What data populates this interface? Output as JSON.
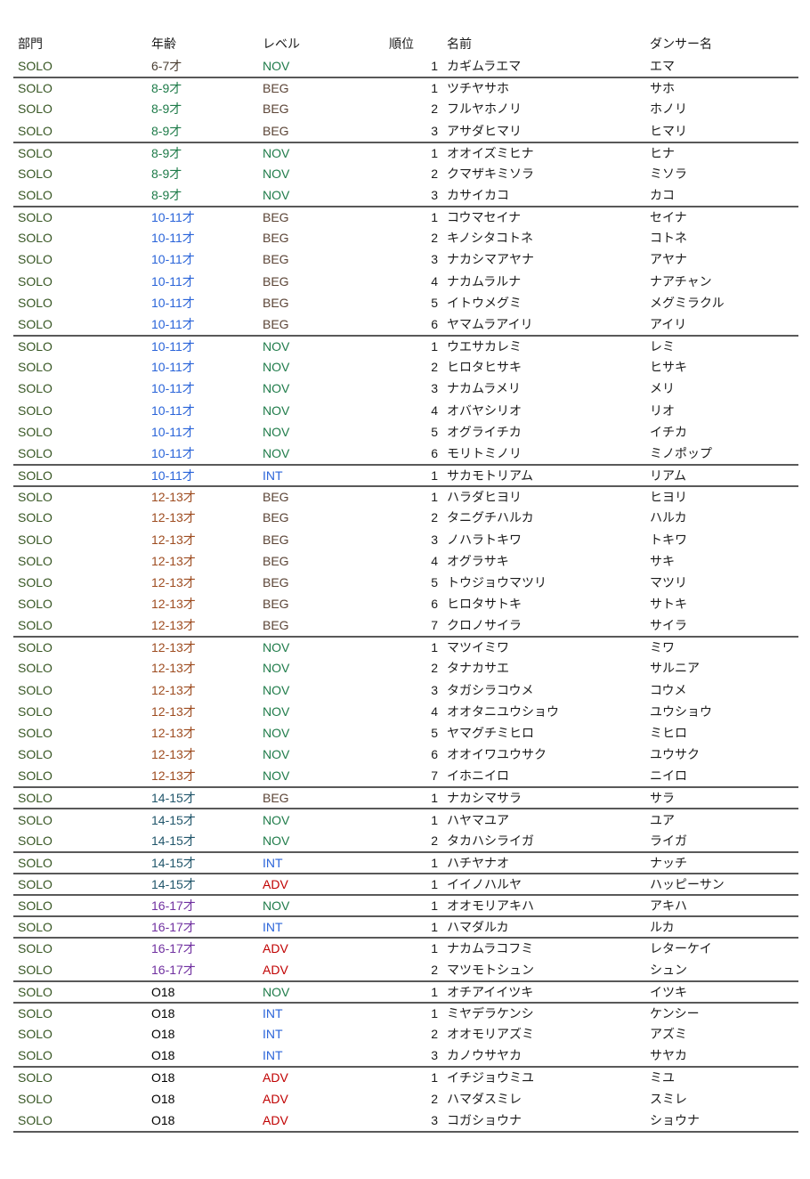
{
  "table": {
    "headers": [
      "部門",
      "年齢",
      "レベル",
      "順位",
      "名前",
      "ダンサー名"
    ],
    "rows": [
      [
        "SOLO",
        "6-7才",
        "NOV",
        "1",
        "カギムラエマ",
        "エマ"
      ],
      [
        "SOLO",
        "8-9才",
        "BEG",
        "1",
        "ツチヤサホ",
        "サホ"
      ],
      [
        "SOLO",
        "8-9才",
        "BEG",
        "2",
        "フルヤホノリ",
        "ホノリ"
      ],
      [
        "SOLO",
        "8-9才",
        "BEG",
        "3",
        "アサダヒマリ",
        "ヒマリ"
      ],
      [
        "SOLO",
        "8-9才",
        "NOV",
        "1",
        "オオイズミヒナ",
        "ヒナ"
      ],
      [
        "SOLO",
        "8-9才",
        "NOV",
        "2",
        "クマザキミソラ",
        "ミソラ"
      ],
      [
        "SOLO",
        "8-9才",
        "NOV",
        "3",
        "カサイカコ",
        "カコ"
      ],
      [
        "SOLO",
        "10-11才",
        "BEG",
        "1",
        "コウマセイナ",
        "セイナ"
      ],
      [
        "SOLO",
        "10-11才",
        "BEG",
        "2",
        "キノシタコトネ",
        "コトネ"
      ],
      [
        "SOLO",
        "10-11才",
        "BEG",
        "3",
        "ナカシマアヤナ",
        "アヤナ"
      ],
      [
        "SOLO",
        "10-11才",
        "BEG",
        "4",
        "ナカムラルナ",
        "ナアチャン"
      ],
      [
        "SOLO",
        "10-11才",
        "BEG",
        "5",
        "イトウメグミ",
        "メグミラクル"
      ],
      [
        "SOLO",
        "10-11才",
        "BEG",
        "6",
        "ヤマムラアイリ",
        "アイリ"
      ],
      [
        "SOLO",
        "10-11才",
        "NOV",
        "1",
        "ウエサカレミ",
        "レミ"
      ],
      [
        "SOLO",
        "10-11才",
        "NOV",
        "2",
        "ヒロタヒサキ",
        "ヒサキ"
      ],
      [
        "SOLO",
        "10-11才",
        "NOV",
        "3",
        "ナカムラメリ",
        "メリ"
      ],
      [
        "SOLO",
        "10-11才",
        "NOV",
        "4",
        "オバヤシリオ",
        "リオ"
      ],
      [
        "SOLO",
        "10-11才",
        "NOV",
        "5",
        "オグライチカ",
        "イチカ"
      ],
      [
        "SOLO",
        "10-11才",
        "NOV",
        "6",
        "モリトミノリ",
        "ミノポップ"
      ],
      [
        "SOLO",
        "10-11才",
        "INT",
        "1",
        "サカモトリアム",
        "リアム"
      ],
      [
        "SOLO",
        "12-13才",
        "BEG",
        "1",
        "ハラダヒヨリ",
        "ヒヨリ"
      ],
      [
        "SOLO",
        "12-13才",
        "BEG",
        "2",
        "タニグチハルカ",
        "ハルカ"
      ],
      [
        "SOLO",
        "12-13才",
        "BEG",
        "3",
        "ノハラトキワ",
        "トキワ"
      ],
      [
        "SOLO",
        "12-13才",
        "BEG",
        "4",
        "オグラサキ",
        "サキ"
      ],
      [
        "SOLO",
        "12-13才",
        "BEG",
        "5",
        "トウジョウマツリ",
        "マツリ"
      ],
      [
        "SOLO",
        "12-13才",
        "BEG",
        "6",
        "ヒロタサトキ",
        "サトキ"
      ],
      [
        "SOLO",
        "12-13才",
        "BEG",
        "7",
        "クロノサイラ",
        "サイラ"
      ],
      [
        "SOLO",
        "12-13才",
        "NOV",
        "1",
        "マツイミワ",
        "ミワ"
      ],
      [
        "SOLO",
        "12-13才",
        "NOV",
        "2",
        "タナカサエ",
        "サルニア"
      ],
      [
        "SOLO",
        "12-13才",
        "NOV",
        "3",
        "タガシラコウメ",
        "コウメ"
      ],
      [
        "SOLO",
        "12-13才",
        "NOV",
        "4",
        "オオタニユウショウ",
        "ユウショウ"
      ],
      [
        "SOLO",
        "12-13才",
        "NOV",
        "5",
        "ヤマグチミヒロ",
        "ミヒロ"
      ],
      [
        "SOLO",
        "12-13才",
        "NOV",
        "6",
        "オオイワユウサク",
        "ユウサク"
      ],
      [
        "SOLO",
        "12-13才",
        "NOV",
        "7",
        "イホニイロ",
        "ニイロ"
      ],
      [
        "SOLO",
        "14-15才",
        "BEG",
        "1",
        "ナカシマサラ",
        "サラ"
      ],
      [
        "SOLO",
        "14-15才",
        "NOV",
        "1",
        "ハヤマユア",
        "ユア"
      ],
      [
        "SOLO",
        "14-15才",
        "NOV",
        "2",
        "タカハシライガ",
        "ライガ"
      ],
      [
        "SOLO",
        "14-15才",
        "INT",
        "1",
        "ハチヤナオ",
        "ナッチ"
      ],
      [
        "SOLO",
        "14-15才",
        "ADV",
        "1",
        "イイノハルヤ",
        "ハッピーサン"
      ],
      [
        "SOLO",
        "16-17才",
        "NOV",
        "1",
        "オオモリアキハ",
        "アキハ"
      ],
      [
        "SOLO",
        "16-17才",
        "INT",
        "1",
        "ハマダルカ",
        "ルカ"
      ],
      [
        "SOLO",
        "16-17才",
        "ADV",
        "1",
        "ナカムラコフミ",
        "レターケイ"
      ],
      [
        "SOLO",
        "16-17才",
        "ADV",
        "2",
        "マツモトシュン",
        "シュン"
      ],
      [
        "SOLO",
        "O18",
        "NOV",
        "1",
        "オチアイイツキ",
        "イツキ"
      ],
      [
        "SOLO",
        "O18",
        "INT",
        "1",
        "ミヤデラケンシ",
        "ケンシー"
      ],
      [
        "SOLO",
        "O18",
        "INT",
        "2",
        "オオモリアズミ",
        "アズミ"
      ],
      [
        "SOLO",
        "O18",
        "INT",
        "3",
        "カノウサヤカ",
        "サヤカ"
      ],
      [
        "SOLO",
        "O18",
        "ADV",
        "1",
        "イチジョウミユ",
        "ミユ"
      ],
      [
        "SOLO",
        "O18",
        "ADV",
        "2",
        "ハマダスミレ",
        "スミレ"
      ],
      [
        "SOLO",
        "O18",
        "ADV",
        "3",
        "コガショウナ",
        "ショウナ"
      ]
    ]
  },
  "colors": {
    "header_text": "#1a1a1a",
    "body_text": "#1a1a1a",
    "division": "#375623",
    "separator": "#595959",
    "age": {
      "6-7才": "#4a3e32",
      "8-9才": "#1e7b49",
      "10-11才": "#2a64d9",
      "12-13才": "#9e4c20",
      "14-15才": "#21566b",
      "16-17才": "#7030a0",
      "O18": "#000000"
    },
    "level": {
      "NOV": "#1e7b49",
      "BEG": "#5b4436",
      "INT": "#2a64d9",
      "ADV": "#c00000"
    }
  }
}
